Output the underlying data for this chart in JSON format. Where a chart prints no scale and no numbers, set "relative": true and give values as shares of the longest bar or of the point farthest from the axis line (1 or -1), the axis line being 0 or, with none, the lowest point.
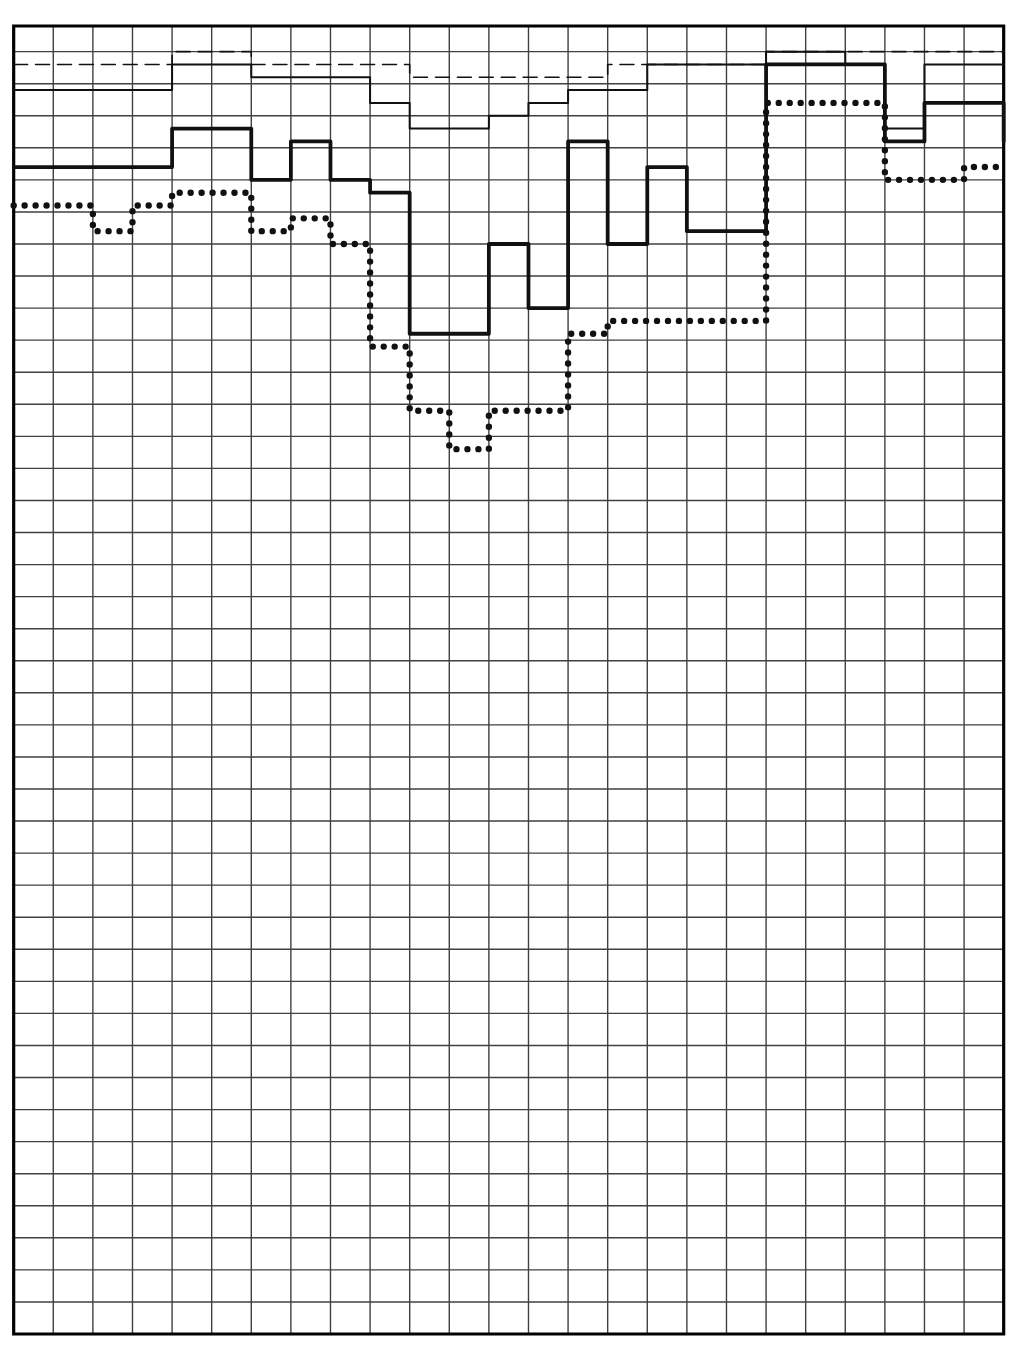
{
  "chart_data": {
    "type": "step",
    "relative": true,
    "grid": true,
    "tick_labels": false,
    "marker": "none",
    "categories": [
      null,
      null,
      null,
      null,
      null,
      null,
      null,
      null,
      null,
      null,
      null,
      null,
      null,
      null,
      null,
      null,
      null,
      null,
      null,
      null,
      null,
      null,
      null,
      null,
      null,
      null
    ],
    "series": [
      {
        "color": "#111111",
        "line_style": "dashed",
        "values": [
          0.99,
          0.99,
          0.99,
          0.99,
          1.0,
          1.0,
          0.99,
          0.99,
          0.99,
          0.99,
          0.98,
          0.98,
          0.98,
          0.98,
          0.98,
          0.99,
          0.99,
          0.99,
          0.99,
          1.0,
          1.0,
          1.0,
          1.0,
          1.0,
          1.0,
          1.0
        ]
      },
      {
        "color": "#111111",
        "line_style": "solid",
        "values": [
          0.97,
          0.97,
          0.97,
          0.97,
          0.99,
          0.99,
          0.98,
          0.98,
          0.98,
          0.96,
          0.94,
          0.94,
          0.95,
          0.96,
          0.97,
          0.97,
          0.99,
          0.99,
          0.99,
          1.0,
          1.0,
          0.99,
          0.94,
          0.99,
          0.99,
          0.99
        ]
      },
      {
        "color": "#111111",
        "line_style": "solid",
        "values": [
          0.91,
          0.91,
          0.91,
          0.91,
          0.94,
          0.94,
          0.9,
          0.93,
          0.9,
          0.89,
          0.78,
          0.78,
          0.85,
          0.8,
          0.93,
          0.85,
          0.91,
          0.86,
          0.86,
          0.99,
          0.99,
          0.99,
          0.93,
          0.96,
          0.96,
          0.93
        ]
      },
      {
        "color": "#111111",
        "line_style": "dotted",
        "values": [
          0.88,
          0.88,
          0.86,
          0.88,
          0.89,
          0.89,
          0.86,
          0.87,
          0.85,
          0.77,
          0.72,
          0.69,
          0.72,
          0.72,
          0.78,
          0.79,
          0.79,
          0.79,
          0.79,
          0.96,
          0.96,
          0.96,
          0.9,
          0.9,
          0.91,
          0.91
        ]
      }
    ]
  }
}
